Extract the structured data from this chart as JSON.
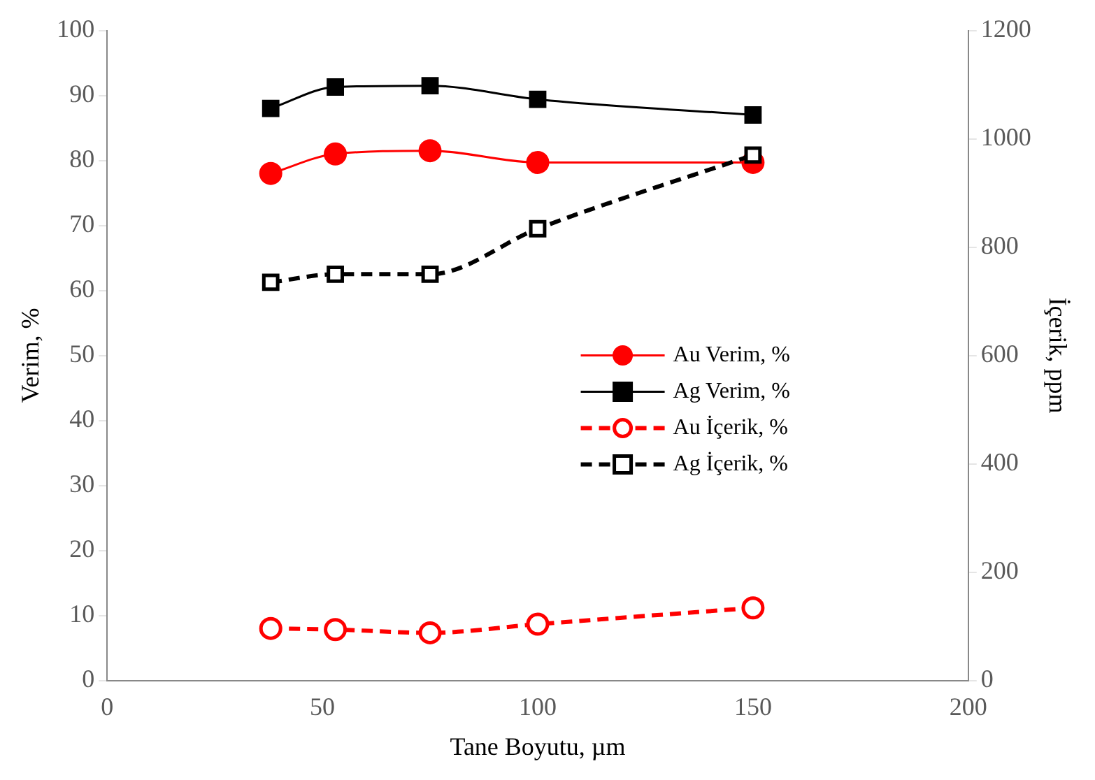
{
  "chart_data": {
    "type": "line",
    "xlabel": "Tane Boyutu, µm",
    "ylabel": "Verim, %",
    "y2label": "İçerik, ppm",
    "xlim": [
      0,
      200
    ],
    "xticks": [
      0,
      50,
      100,
      150,
      200
    ],
    "ylim": [
      0,
      100
    ],
    "yticks": [
      0,
      10,
      20,
      30,
      40,
      50,
      60,
      70,
      80,
      90,
      100
    ],
    "y2lim": [
      0,
      1200
    ],
    "y2ticks": [
      0,
      200,
      400,
      600,
      800,
      1000,
      1200
    ],
    "x": [
      38,
      53,
      75,
      100,
      150
    ],
    "grid": false,
    "legend": "right",
    "series": [
      {
        "name": "Au Verim, %",
        "color": "#ff0000",
        "values": [
          78,
          81,
          81.5,
          79.7,
          79.7
        ],
        "marker": "circle",
        "line_style": "solid"
      },
      {
        "name": "Ag Verim, %",
        "color": "#000000",
        "values": [
          88,
          91.3,
          91.5,
          89.4,
          87
        ],
        "marker": "square",
        "line_style": "solid"
      },
      {
        "name": "Au İçerik, %",
        "color": "#ff0000",
        "values": [
          96,
          94,
          88,
          104,
          134
        ],
        "marker": "circle",
        "line_style": "dashed",
        "axis": "y2"
      },
      {
        "name": "Ag İçerik, %",
        "color": "#000000",
        "values": [
          735,
          750,
          750,
          834,
          970
        ],
        "marker": "square",
        "line_style": "dashed",
        "axis": "y2"
      }
    ]
  }
}
